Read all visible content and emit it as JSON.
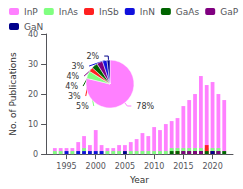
{
  "chart_data": [
    {
      "type": "bar",
      "stacked": true,
      "xlabel": "Year",
      "ylabel": "No. of Publications",
      "x": [
        1993,
        1994,
        1995,
        1996,
        1997,
        1998,
        1999,
        2000,
        2001,
        2002,
        2003,
        2004,
        2005,
        2006,
        2007,
        2008,
        2009,
        2010,
        2011,
        2012,
        2013,
        2014,
        2015,
        2016,
        2017,
        2018,
        2019,
        2020,
        2021,
        2022
      ],
      "series": [
        {
          "name": "InP",
          "color": "#ff80ff",
          "values": [
            2,
            2,
            2,
            2,
            4,
            6,
            3,
            8,
            3,
            2,
            2,
            3,
            3,
            4,
            5,
            7,
            6,
            9,
            8,
            10,
            11,
            12,
            16,
            18,
            20,
            26,
            23,
            24,
            20,
            18
          ]
        },
        {
          "name": "InAs",
          "color": "#80ff80",
          "values": [
            1,
            1,
            1,
            1,
            1,
            2,
            1,
            1,
            1,
            1,
            1,
            1,
            1,
            1,
            1,
            1,
            1,
            1,
            1,
            1,
            2,
            2,
            2,
            2,
            2,
            2,
            2,
            2,
            2,
            1
          ]
        },
        {
          "name": "InSb",
          "color": "#ff2020",
          "values": [
            0,
            0,
            0,
            0,
            0,
            0,
            0,
            0,
            0,
            0,
            0,
            0,
            0,
            0,
            0,
            0,
            0,
            0,
            0,
            0,
            0,
            1,
            0,
            0,
            1,
            1,
            3,
            1,
            0,
            0
          ]
        },
        {
          "name": "InN",
          "color": "#1010dd",
          "values": [
            0,
            0,
            1,
            0,
            1,
            1,
            1,
            1,
            1,
            0,
            0,
            0,
            0,
            0,
            0,
            0,
            0,
            0,
            0,
            0,
            0,
            0,
            0,
            0,
            0,
            0,
            0,
            0,
            0,
            0
          ]
        },
        {
          "name": "GaAs",
          "color": "#006400",
          "values": [
            0,
            0,
            0,
            0,
            0,
            0,
            0,
            0,
            0,
            0,
            0,
            0,
            0,
            0,
            0,
            0,
            0,
            0,
            0,
            0,
            1,
            1,
            1,
            1,
            1,
            1,
            1,
            1,
            1,
            1
          ]
        },
        {
          "name": "GaP",
          "color": "#800080",
          "values": [
            0,
            0,
            0,
            0,
            0,
            0,
            0,
            0,
            0,
            0,
            0,
            0,
            0,
            0,
            0,
            0,
            0,
            0,
            0,
            0,
            0,
            0,
            1,
            1,
            1,
            1,
            0,
            1,
            1,
            0
          ]
        },
        {
          "name": "GaN",
          "color": "#00008b",
          "values": [
            0,
            0,
            0,
            0,
            0,
            0,
            0,
            0,
            0,
            0,
            0,
            0,
            1,
            0,
            0,
            0,
            0,
            0,
            0,
            0,
            0,
            0,
            0,
            0,
            0,
            0,
            0,
            1,
            0,
            0
          ]
        }
      ],
      "xlim": [
        1991.5,
        2023.5
      ],
      "xticks": [
        1995,
        2000,
        2005,
        2010,
        2015,
        2020
      ],
      "ylim": [
        0,
        40
      ],
      "yticks": [
        0,
        10,
        20,
        30,
        40
      ],
      "legend": "upper left",
      "grid": false
    },
    {
      "type": "pie",
      "values": [
        78,
        5,
        3,
        4,
        4,
        3,
        2
      ],
      "value_labels": [
        "78%",
        "5%",
        "3%",
        "4%",
        "4%",
        "3%",
        "2%"
      ],
      "colors": [
        "#ff80ff",
        "#80ff80",
        "#ff2020",
        "#006400",
        "#800080",
        "#1010dd",
        "#00008b"
      ]
    }
  ]
}
